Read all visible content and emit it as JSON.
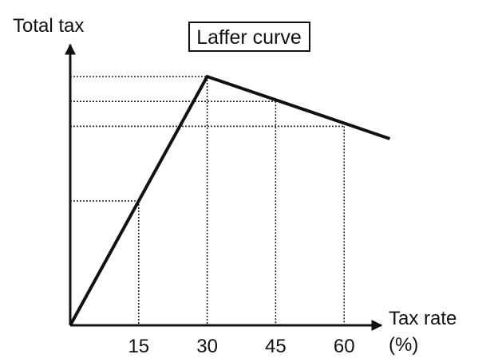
{
  "chart_data": {
    "type": "line",
    "title": "Laffer curve",
    "ylabel": "Total tax",
    "xlabel_line1": "Tax rate",
    "xlabel_line2": "(%)",
    "x_ticks": [
      "15",
      "30",
      "45",
      "60"
    ],
    "xlim": [
      0,
      70
    ],
    "ylim": [
      0,
      110
    ],
    "series": [
      {
        "x": [
          0,
          30,
          70
        ],
        "y": [
          0,
          100,
          75
        ]
      }
    ],
    "reference_points": [
      {
        "x": 15,
        "y": 50
      },
      {
        "x": 30,
        "y": 100
      },
      {
        "x": 45,
        "y": 90
      },
      {
        "x": 60,
        "y": 80
      }
    ],
    "grid": false,
    "colors": {
      "line": "#111111",
      "axis": "#111111"
    }
  }
}
